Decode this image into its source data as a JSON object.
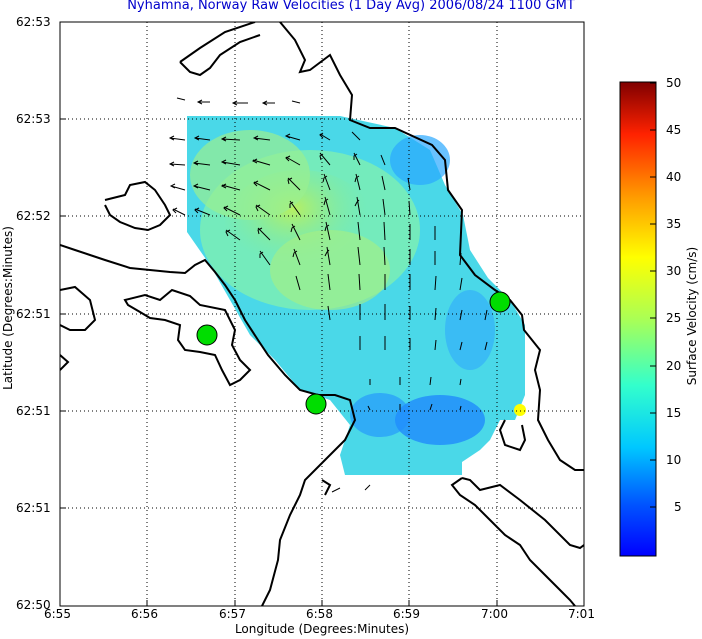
{
  "title": "Nyhamna, Norway Raw Velocities (1 Day Avg) 2006/08/24 1100 GMT",
  "xlabel": "Longitude (Degrees:Minutes)",
  "ylabel": "Latitude (Degrees:Minutes)",
  "colorbar_label": "Surface Velocity (cm/s)",
  "x_ticks": [
    "6:55",
    "6:56",
    "6:57",
    "6:58",
    "6:59",
    "7:00",
    "7:01"
  ],
  "y_ticks": [
    "62:53",
    "62:53",
    "62:52",
    "62:51",
    "62:51",
    "62:51",
    "62:50"
  ],
  "colorbar_ticks": [
    "50",
    "45",
    "40",
    "35",
    "30",
    "25",
    "20",
    "15",
    "10",
    "5"
  ],
  "colorbar_range": [
    0,
    50
  ],
  "colormap": "jet",
  "grid": true,
  "site_marker_color": "#00dd00",
  "site_count": 3
}
